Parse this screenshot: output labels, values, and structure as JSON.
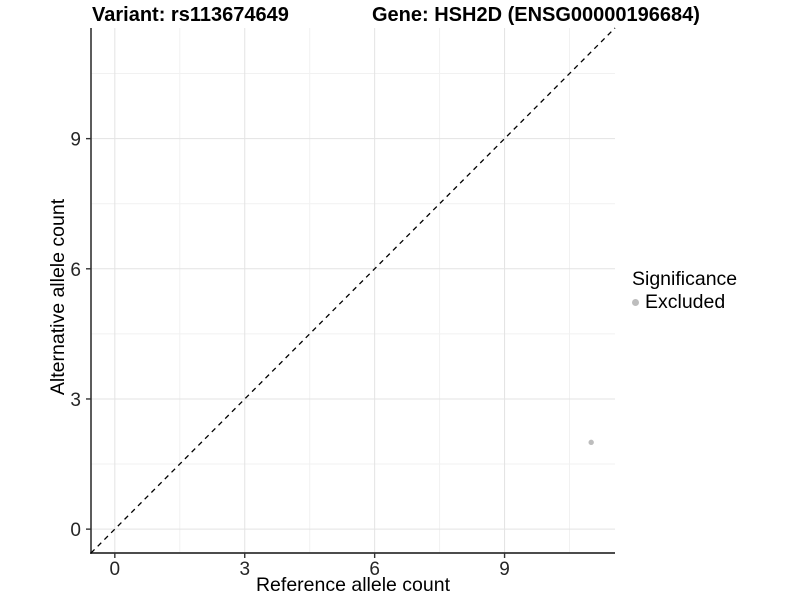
{
  "chart_data": {
    "type": "scatter",
    "title_left": "Variant: rs113674649",
    "title_right": "Gene: HSH2D (ENSG00000196684)",
    "xlabel": "Reference allele count",
    "ylabel": "Alternative allele count",
    "xlim": [
      -0.55,
      11.55
    ],
    "ylim": [
      -0.55,
      11.55
    ],
    "xticks": [
      0,
      3,
      6,
      9
    ],
    "yticks": [
      0,
      3,
      6,
      9
    ],
    "x_minor_ticks": [
      1.5,
      4.5,
      7.5,
      10.5
    ],
    "y_minor_ticks": [
      1.5,
      4.5,
      7.5,
      10.5
    ],
    "grid": "major+minor",
    "legend_position": "right",
    "reference_line": {
      "description": "identity line y = x",
      "style": "dashed",
      "color": "#000000",
      "from": [
        -0.55,
        -0.55
      ],
      "to": [
        11.55,
        11.55
      ]
    },
    "series": [
      {
        "name": "Excluded",
        "color": "#bdbdbd",
        "points": [
          [
            11,
            2
          ]
        ]
      }
    ],
    "legend": {
      "title": "Significance",
      "entries": [
        {
          "label": "Excluded",
          "color": "#bdbdbd",
          "marker": "circle"
        }
      ]
    }
  },
  "colors": {
    "background": "#ffffff",
    "axis_line": "#333333",
    "tick_mark": "#333333",
    "tick_label": "#262626",
    "grid_major": "#e3e3e3",
    "grid_minor": "#f1f1f1",
    "point": "#bdbdbd",
    "reference_line": "#000000"
  }
}
